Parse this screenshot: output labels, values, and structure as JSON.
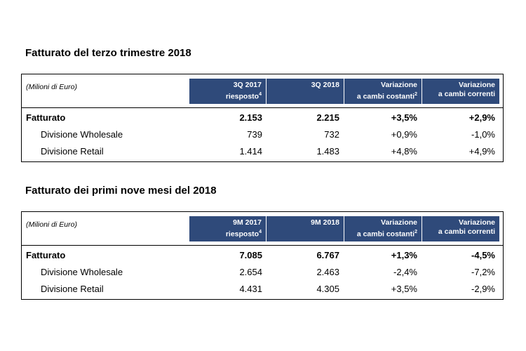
{
  "table1": {
    "title": "Fatturato del terzo trimestre 2018",
    "units": "(Milioni di Euro)",
    "headers": [
      {
        "line1": "3Q 2017",
        "line2": "riesposto",
        "sup": "4"
      },
      {
        "line1": "3Q 2018",
        "line2": "",
        "sup": ""
      },
      {
        "line1": "Variazione",
        "line2": "a cambi costanti",
        "sup": "2"
      },
      {
        "line1": "Variazione",
        "line2": "a cambi correnti",
        "sup": ""
      }
    ],
    "rows": [
      {
        "label": "Fatturato",
        "values": [
          "2.153",
          "2.215",
          "+3,5%",
          "+2,9%"
        ]
      },
      {
        "label": "Divisione Wholesale",
        "values": [
          "739",
          "732",
          "+0,9%",
          "-1,0%"
        ]
      },
      {
        "label": "Divisione Retail",
        "values": [
          "1.414",
          "1.483",
          "+4,8%",
          "+4,9%"
        ]
      }
    ]
  },
  "table2": {
    "title": "Fatturato dei primi nove mesi del 2018",
    "units": "(Milioni di Euro)",
    "headers": [
      {
        "line1": "9M 2017",
        "line2": "riesposto",
        "sup": "4"
      },
      {
        "line1": "9M 2018",
        "line2": "",
        "sup": ""
      },
      {
        "line1": "Variazione",
        "line2": "a cambi costanti",
        "sup": "2"
      },
      {
        "line1": "Variazione",
        "line2": "a cambi correnti",
        "sup": ""
      }
    ],
    "rows": [
      {
        "label": "Fatturato",
        "values": [
          "7.085",
          "6.767",
          "+1,3%",
          "-4,5%"
        ]
      },
      {
        "label": "Divisione Wholesale",
        "values": [
          "2.654",
          "2.463",
          "-2,4%",
          "-7,2%"
        ]
      },
      {
        "label": "Divisione Retail",
        "values": [
          "4.431",
          "4.305",
          "+3,5%",
          "-2,9%"
        ]
      }
    ]
  },
  "colors": {
    "header_blue": "#2f4a7a"
  }
}
